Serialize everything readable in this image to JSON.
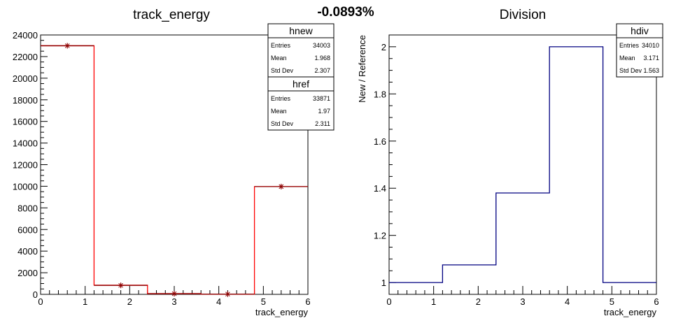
{
  "header": {
    "diff": "-0.0893%"
  },
  "chart_data": [
    {
      "type": "histogram",
      "title": "track_energy",
      "xlabel": "track_energy",
      "ylabel": "",
      "xlim": [
        0,
        6
      ],
      "ylim": [
        0,
        24000
      ],
      "xticks": [
        "0",
        "1",
        "2",
        "3",
        "4",
        "5",
        "6"
      ],
      "yticks": [
        "0",
        "2000",
        "4000",
        "6000",
        "8000",
        "10000",
        "12000",
        "14000",
        "16000",
        "18000",
        "20000",
        "22000",
        "24000"
      ],
      "bin_edges": [
        0,
        1.2,
        2.4,
        3.6,
        4.8,
        6
      ],
      "series": [
        {
          "name": "hnew",
          "color": "#ff0000",
          "style": "step",
          "values": [
            23000,
            850,
            60,
            20,
            9970
          ]
        },
        {
          "name": "href",
          "color": "#8b0000",
          "style": "markers",
          "values": [
            23000,
            830,
            60,
            20,
            9970
          ]
        }
      ],
      "stats": [
        {
          "name": "hnew",
          "rows": [
            {
              "label": "Entries",
              "value": "34003"
            },
            {
              "label": "Mean",
              "value": "1.968"
            },
            {
              "label": "Std Dev",
              "value": "2.307"
            }
          ]
        },
        {
          "name": "href",
          "rows": [
            {
              "label": "Entries",
              "value": "33871"
            },
            {
              "label": "Mean",
              "value": "1.97"
            },
            {
              "label": "Std Dev",
              "value": "2.311"
            }
          ]
        }
      ]
    },
    {
      "type": "histogram",
      "title": "Division",
      "xlabel": "track_energy",
      "ylabel": "New / Reference",
      "xlim": [
        0,
        6
      ],
      "ylim": [
        0.95,
        2.05
      ],
      "xticks": [
        "0",
        "1",
        "2",
        "3",
        "4",
        "5",
        "6"
      ],
      "yticks": [
        "1",
        "1.2",
        "1.4",
        "1.6",
        "1.8",
        "2"
      ],
      "bin_edges": [
        0,
        1.2,
        2.4,
        3.6,
        4.8,
        6
      ],
      "series": [
        {
          "name": "hdiv",
          "color": "#000080",
          "style": "step",
          "values": [
            1.0,
            1.075,
            1.38,
            2.0,
            1.0
          ]
        }
      ],
      "stats": [
        {
          "name": "hdiv",
          "rows": [
            {
              "label": "Entries",
              "value": "34010"
            },
            {
              "label": "Mean",
              "value": "3.171"
            },
            {
              "label": "Std Dev",
              "value": "1.563"
            }
          ]
        }
      ]
    }
  ]
}
